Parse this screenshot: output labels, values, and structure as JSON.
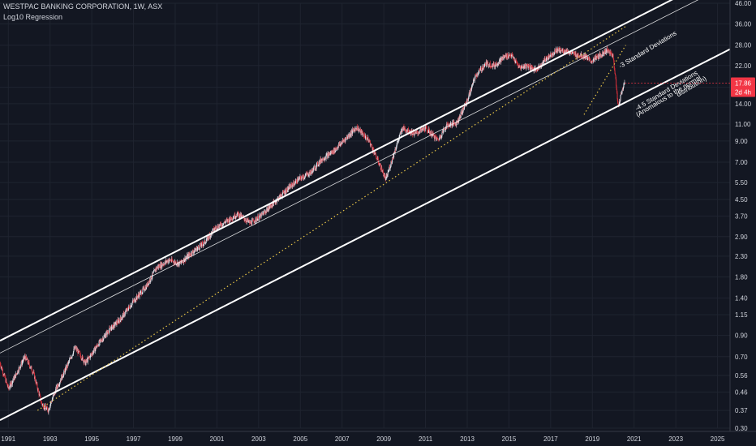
{
  "header": {
    "title": "WESTPAC BANKING CORPORATION, 1W, ASX",
    "indicator": "Log10 Regression"
  },
  "price_badge": {
    "price": "17.86",
    "countdown": "2d 4h",
    "color": "#f23645"
  },
  "colors": {
    "background": "#131722",
    "grid": "#1f2430",
    "axis_text": "#d1d4dc",
    "up_candle": "#e0e3eb",
    "down_candle": "#d12f3a",
    "regression_line": "#ffffff",
    "dotted_line": "#e8c547"
  },
  "chart_data": {
    "type": "line",
    "title": "WESTPAC BANKING CORPORATION, 1W, ASX",
    "y_scale": "log",
    "ylim": [
      0.3,
      46
    ],
    "xlim": [
      1990.6,
      2025.6
    ],
    "grid": true,
    "x_ticks": [
      "1991",
      "1993",
      "1995",
      "1997",
      "1999",
      "2001",
      "2003",
      "2005",
      "2007",
      "2009",
      "2011",
      "2013",
      "2015",
      "2017",
      "2019",
      "2021",
      "2023",
      "2025"
    ],
    "y_ticks": [
      "46.00",
      "36.00",
      "28.00",
      "22.00",
      "17.00",
      "14.00",
      "11.00",
      "9.00",
      "7.00",
      "5.50",
      "4.50",
      "3.70",
      "2.90",
      "2.30",
      "1.80",
      "1.40",
      "1.15",
      "0.90",
      "0.70",
      "0.56",
      "0.46",
      "0.37",
      "0.30"
    ],
    "series": [
      {
        "role": "price",
        "points": [
          [
            1990.6,
            0.65
          ],
          [
            1991.0,
            0.48
          ],
          [
            1991.3,
            0.55
          ],
          [
            1991.8,
            0.7
          ],
          [
            1992.2,
            0.58
          ],
          [
            1992.6,
            0.4
          ],
          [
            1992.9,
            0.37
          ],
          [
            1993.3,
            0.48
          ],
          [
            1993.8,
            0.62
          ],
          [
            1994.2,
            0.78
          ],
          [
            1994.7,
            0.65
          ],
          [
            1995.2,
            0.78
          ],
          [
            1995.8,
            0.95
          ],
          [
            1996.4,
            1.1
          ],
          [
            1997.0,
            1.35
          ],
          [
            1997.6,
            1.6
          ],
          [
            1998.1,
            2.0
          ],
          [
            1998.7,
            2.2
          ],
          [
            1999.2,
            2.1
          ],
          [
            1999.8,
            2.4
          ],
          [
            2000.4,
            2.7
          ],
          [
            2000.9,
            3.2
          ],
          [
            2001.5,
            3.5
          ],
          [
            2002.0,
            3.8
          ],
          [
            2002.6,
            3.4
          ],
          [
            2003.1,
            3.7
          ],
          [
            2003.7,
            4.3
          ],
          [
            2004.3,
            5.0
          ],
          [
            2004.9,
            5.7
          ],
          [
            2005.5,
            6.2
          ],
          [
            2006.0,
            7.2
          ],
          [
            2006.6,
            8.0
          ],
          [
            2007.1,
            9.1
          ],
          [
            2007.7,
            10.6
          ],
          [
            2008.3,
            9.0
          ],
          [
            2008.8,
            6.8
          ],
          [
            2009.1,
            5.7
          ],
          [
            2009.6,
            8.5
          ],
          [
            2009.9,
            10.5
          ],
          [
            2010.5,
            9.8
          ],
          [
            2011.0,
            10.5
          ],
          [
            2011.6,
            9.1
          ],
          [
            2012.0,
            10.8
          ],
          [
            2012.5,
            11.2
          ],
          [
            2013.0,
            14.5
          ],
          [
            2013.4,
            19.5
          ],
          [
            2013.9,
            22.5
          ],
          [
            2014.3,
            22.0
          ],
          [
            2014.8,
            24.5
          ],
          [
            2015.1,
            25.0
          ],
          [
            2015.5,
            21.5
          ],
          [
            2015.9,
            22.0
          ],
          [
            2016.3,
            20.8
          ],
          [
            2016.8,
            24.0
          ],
          [
            2017.3,
            26.5
          ],
          [
            2017.8,
            26.0
          ],
          [
            2018.2,
            25.0
          ],
          [
            2018.7,
            24.5
          ],
          [
            2018.9,
            23.0
          ],
          [
            2019.3,
            24.5
          ],
          [
            2019.7,
            26.5
          ],
          [
            2020.0,
            24.5
          ],
          [
            2020.1,
            19.5
          ],
          [
            2020.2,
            14.5
          ],
          [
            2020.25,
            13.8
          ],
          [
            2020.35,
            15.2
          ],
          [
            2020.45,
            16.8
          ],
          [
            2020.55,
            17.86
          ]
        ]
      }
    ],
    "regression_lines": [
      {
        "role": "upper",
        "style": "solid",
        "x": [
          1990.6,
          2025.6
        ],
        "y": [
          0.845,
          68
        ]
      },
      {
        "role": "center",
        "style": "solid-thin",
        "x": [
          1990.6,
          2025.6
        ],
        "y": [
          0.73,
          58
        ]
      },
      {
        "role": "lower",
        "style": "solid",
        "x": [
          1990.6,
          2025.6
        ],
        "y": [
          0.33,
          26.7
        ]
      },
      {
        "role": "-3 sd",
        "style": "dotted",
        "x": [
          1992.4,
          2020.6
        ],
        "y": [
          0.37,
          35
        ]
      },
      {
        "role": "-4.5 sd",
        "style": "dotted",
        "x": [
          2018.6,
          2020.6
        ],
        "y": [
          12.3,
          28
        ]
      }
    ],
    "annotations": [
      {
        "text": "-3 Standard Deviations",
        "x": 2021.7,
        "y": 26.0,
        "angle": -31
      },
      {
        "text": "-4.5 Standard Deviations",
        "x": 2022.6,
        "y": 16.0,
        "angle": -31
      },
      {
        "text": "(Anomalous to the normal",
        "x": 2022.7,
        "y": 15.0,
        "angle": -31
      },
      {
        "text": "distribution)",
        "x": 2023.8,
        "y": 16.8,
        "angle": -31
      }
    ]
  }
}
